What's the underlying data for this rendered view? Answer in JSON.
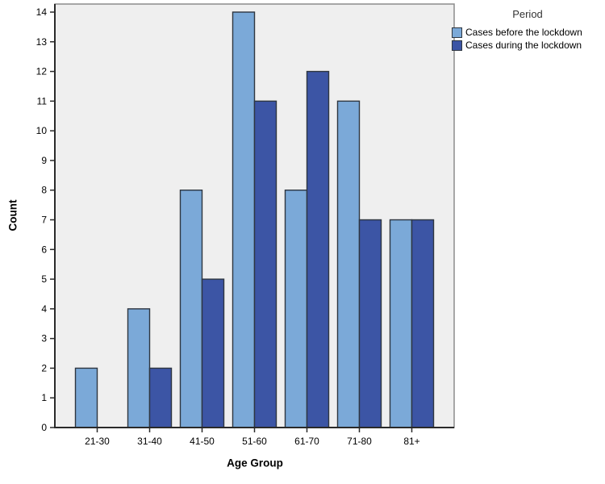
{
  "chart_data": {
    "type": "bar",
    "subtype": "grouped-clustered",
    "title": "",
    "xlabel": "Age Group",
    "ylabel": "Count",
    "categories": [
      "21-30",
      "31-40",
      "41-50",
      "51-60",
      "61-70",
      "71-80",
      "81+"
    ],
    "series": [
      {
        "name": "Cases before the lockdown",
        "color": "#7BA9D8",
        "values": [
          2,
          4,
          8,
          14,
          8,
          11,
          7
        ]
      },
      {
        "name": "Cases during the lockdown",
        "color": "#3C55A5",
        "values": [
          0,
          2,
          5,
          11,
          12,
          7,
          7
        ]
      }
    ],
    "ylim": [
      0,
      14
    ],
    "ytick_step": 1,
    "yticks": [
      0,
      1,
      2,
      3,
      4,
      5,
      6,
      7,
      8,
      9,
      10,
      11,
      12,
      13,
      14
    ],
    "legend_title": "Period",
    "legend_position": "top-right",
    "grid": false,
    "colors": {
      "plot_background": "#EFEFEF",
      "bar_border": "#2E3640",
      "frame_border": "#8C8C8C",
      "axis_line": "#2A2A2A",
      "tick_label": "#000000"
    }
  }
}
